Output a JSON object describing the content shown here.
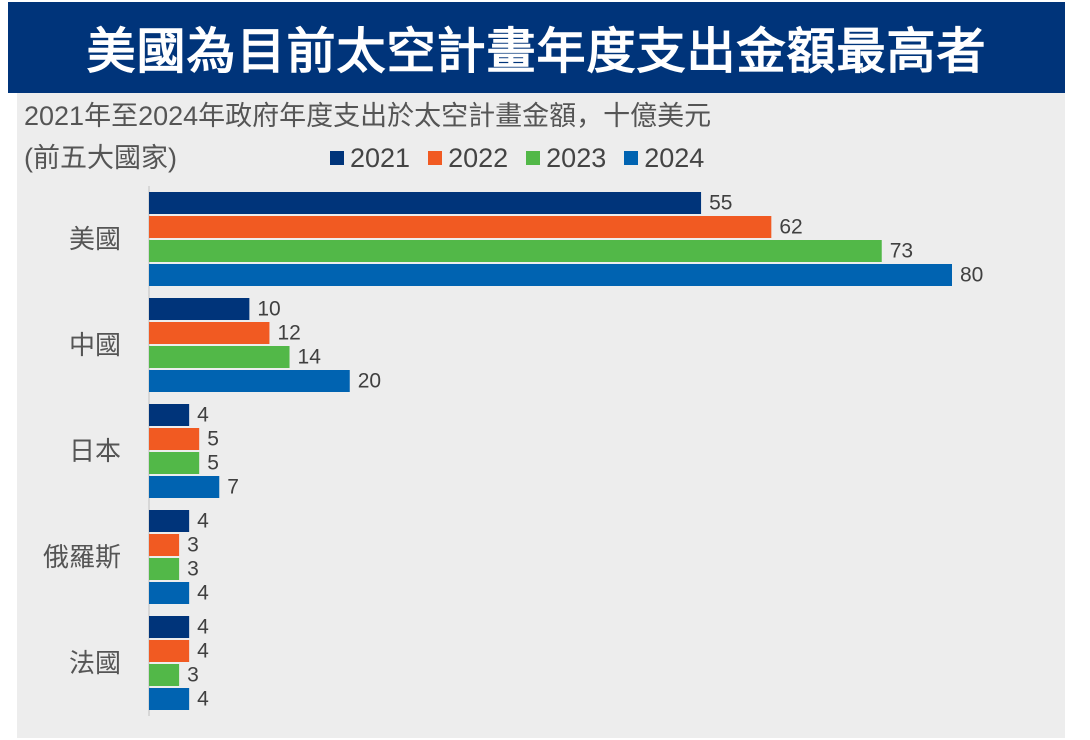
{
  "header": {
    "title": "美國為目前太空計畫年度支出金額最高者"
  },
  "colors": {
    "banner": "#00347a",
    "panel": "#ededed"
  },
  "chart_data": {
    "type": "bar",
    "orientation": "horizontal",
    "title": "2021年至2024年政府年度支出於太空計畫金額，十億美元",
    "subtitle": "(前五大國家)",
    "xlabel": "",
    "ylabel": "",
    "unit": "十億美元",
    "xlim": [
      0,
      80
    ],
    "grid": false,
    "legend_position": "top",
    "categories": [
      "美國",
      "中國",
      "日本",
      "俄羅斯",
      "法國"
    ],
    "series": [
      {
        "name": "2021",
        "color": "#00347a",
        "values": [
          55,
          10,
          4,
          4,
          4
        ]
      },
      {
        "name": "2022",
        "color": "#f15a22",
        "values": [
          62,
          12,
          5,
          3,
          4
        ]
      },
      {
        "name": "2023",
        "color": "#52b848",
        "values": [
          73,
          14,
          5,
          3,
          3
        ]
      },
      {
        "name": "2024",
        "color": "#0063b1",
        "values": [
          80,
          20,
          7,
          4,
          4
        ]
      }
    ]
  }
}
